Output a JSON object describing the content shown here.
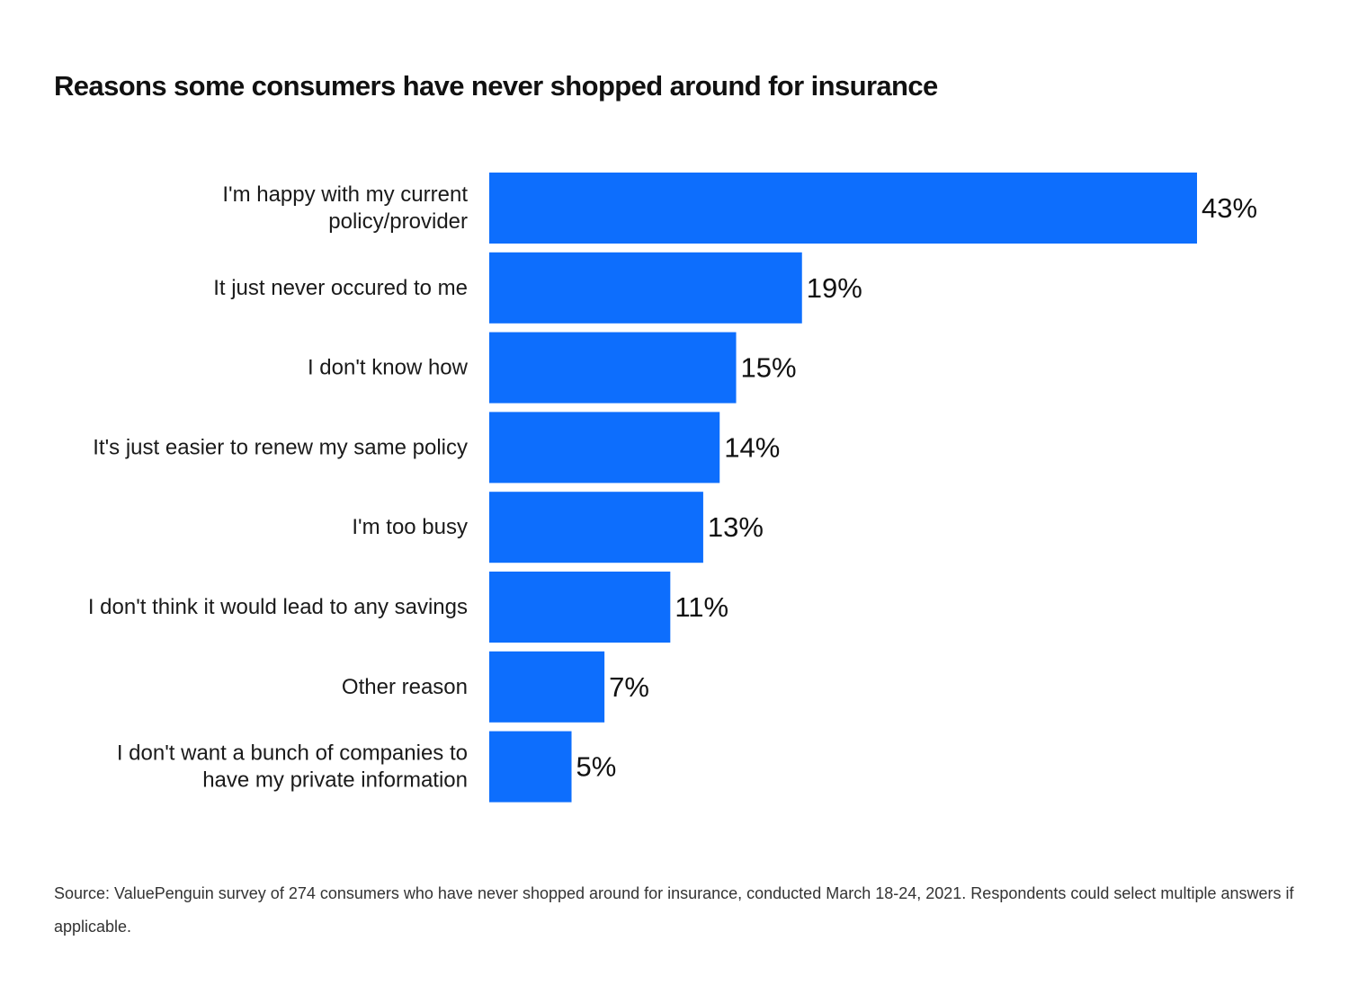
{
  "chart_data": {
    "type": "bar",
    "orientation": "horizontal",
    "title": "Reasons some consumers have never shopped around for insurance",
    "categories": [
      [
        "I'm happy with my current",
        "policy/provider"
      ],
      [
        "It just never occured to me"
      ],
      [
        "I don't know how"
      ],
      [
        "It's just easier to renew my same policy"
      ],
      [
        "I'm too busy"
      ],
      [
        "I don't think it would lead to any savings"
      ],
      [
        "Other reason"
      ],
      [
        "I don't want a bunch of companies to",
        "have my private information"
      ]
    ],
    "values": [
      43,
      19,
      15,
      14,
      13,
      11,
      7,
      5
    ],
    "value_labels": [
      "43%",
      "19%",
      "15%",
      "14%",
      "13%",
      "11%",
      "7%",
      "5%"
    ],
    "xlim": [
      0,
      43
    ],
    "grid": false,
    "legend": "none",
    "bar_color": "#0d6efd"
  },
  "source": "Source: ValuePenguin survey of 274 consumers who have never shopped around for insurance, conducted March 18-24, 2021. Respondents could select multiple answers if applicable."
}
